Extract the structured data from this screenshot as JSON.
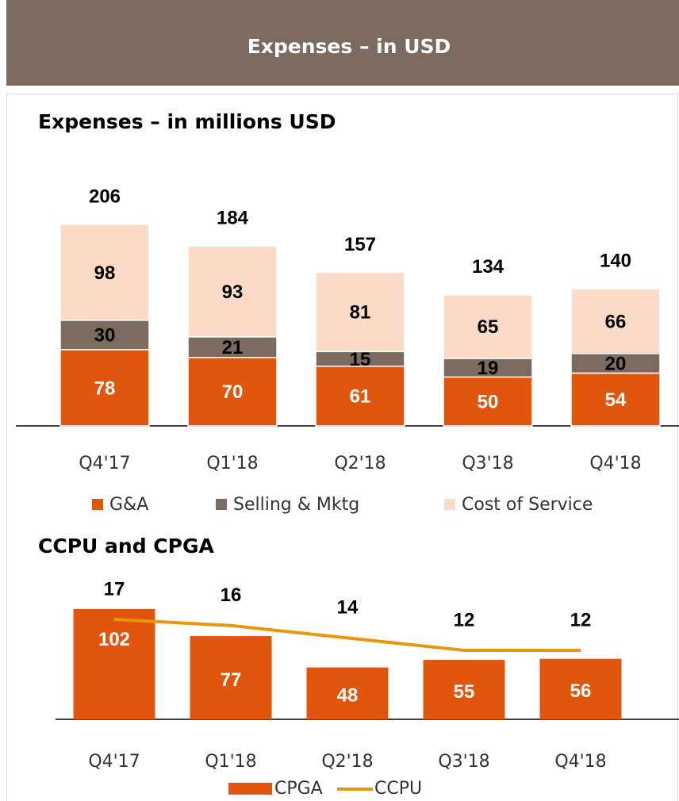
{
  "header": {
    "title": "Expenses – in USD"
  },
  "chart_data": [
    {
      "type": "stacked_bar",
      "title": "Expenses – in millions USD",
      "categories": [
        "Q4'17",
        "Q1'18",
        "Q2'18",
        "Q3'18",
        "Q4'18"
      ],
      "series": [
        {
          "name": "G&A",
          "color": "#e0560c",
          "values": [
            78,
            70,
            61,
            50,
            54
          ]
        },
        {
          "name": "Selling & Mktg",
          "color": "#7a6a60",
          "values": [
            30,
            21,
            15,
            19,
            20
          ]
        },
        {
          "name": "Cost of Service",
          "color": "#fbdac8",
          "values": [
            98,
            93,
            81,
            65,
            66
          ]
        }
      ],
      "totals": [
        206,
        184,
        157,
        134,
        140
      ]
    },
    {
      "type": "combo",
      "title": "CCPU and CPGA",
      "categories": [
        "Q4'17",
        "Q1'18",
        "Q2'18",
        "Q3'18",
        "Q4'18"
      ],
      "series": [
        {
          "name": "CPGA",
          "type": "bar",
          "color": "#e0560c",
          "values": [
            102,
            77,
            48,
            55,
            56
          ]
        },
        {
          "name": "CCPU",
          "type": "line",
          "color": "#e8960c",
          "values": [
            17,
            16,
            14,
            12,
            12
          ]
        }
      ]
    }
  ]
}
